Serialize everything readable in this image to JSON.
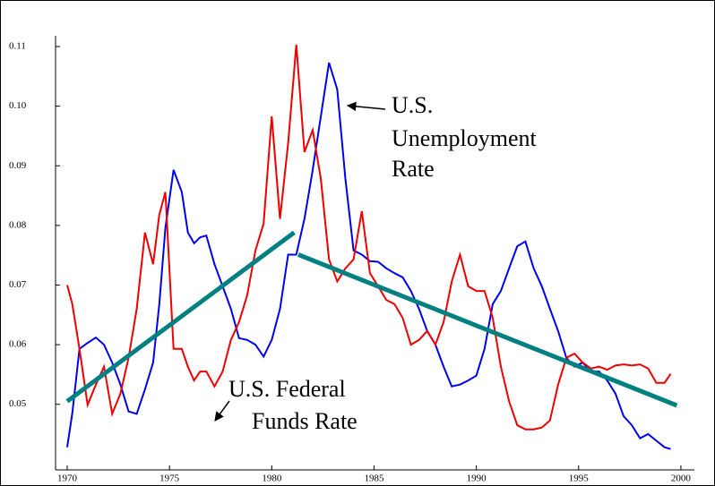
{
  "chart_data": {
    "type": "line",
    "x": [
      1970,
      1970.25,
      1970.6,
      1971.0,
      1971.4,
      1971.8,
      1972.2,
      1972.6,
      1973.0,
      1973.4,
      1973.8,
      1974.2,
      1974.5,
      1974.8,
      1975.2,
      1975.6,
      1975.9,
      1976.2,
      1976.5,
      1976.8,
      1977.2,
      1977.6,
      1978.0,
      1978.4,
      1978.8,
      1979.2,
      1979.6,
      1980.0,
      1980.4,
      1980.8,
      1981.2,
      1981.6,
      1982.0,
      1982.4,
      1982.8,
      1983.2,
      1983.6,
      1984.0,
      1984.4,
      1984.8,
      1985.2,
      1985.6,
      1986.0,
      1986.4,
      1986.8,
      1987.2,
      1987.6,
      1988.0,
      1988.4,
      1988.8,
      1989.2,
      1989.6,
      1990.0,
      1990.4,
      1990.8,
      1991.2,
      1991.6,
      1992.0,
      1992.4,
      1992.8,
      1993.2,
      1993.6,
      1994.0,
      1994.4,
      1994.8,
      1995.2,
      1995.6,
      1996.0,
      1996.4,
      1996.8,
      1997.2,
      1997.6,
      1998.0,
      1998.4,
      1998.8,
      1999.2,
      1999.5
    ],
    "series": [
      {
        "color": "#0000ee",
        "values": [
          0.0428,
          0.0485,
          0.0593,
          0.0603,
          0.0612,
          0.06,
          0.057,
          0.0533,
          0.0488,
          0.0484,
          0.0525,
          0.057,
          0.0668,
          0.0796,
          0.0893,
          0.0856,
          0.0788,
          0.077,
          0.078,
          0.0783,
          0.0735,
          0.0698,
          0.066,
          0.0611,
          0.0608,
          0.06,
          0.058,
          0.0608,
          0.066,
          0.0751,
          0.0751,
          0.0811,
          0.0893,
          0.0983,
          0.1073,
          0.1028,
          0.0878,
          0.0758,
          0.0751,
          0.074,
          0.0739,
          0.0728,
          0.072,
          0.0713,
          0.069,
          0.066,
          0.0623,
          0.06,
          0.0563,
          0.053,
          0.0533,
          0.054,
          0.0548,
          0.0593,
          0.0668,
          0.069,
          0.0728,
          0.0765,
          0.0773,
          0.0728,
          0.0698,
          0.066,
          0.0623,
          0.0578,
          0.0563,
          0.057,
          0.0555,
          0.0555,
          0.054,
          0.0518,
          0.048,
          0.0465,
          0.0443,
          0.045,
          0.0439,
          0.0428,
          0.0425
        ]
      },
      {
        "color": "#ee0000",
        "values": [
          0.07,
          0.0668,
          0.0593,
          0.0499,
          0.0533,
          0.0563,
          0.0484,
          0.0518,
          0.0578,
          0.066,
          0.0788,
          0.0735,
          0.0818,
          0.0856,
          0.0593,
          0.0593,
          0.0563,
          0.054,
          0.0555,
          0.0555,
          0.053,
          0.0555,
          0.0608,
          0.0638,
          0.0683,
          0.0758,
          0.0803,
          0.0983,
          0.0811,
          0.0938,
          0.1103,
          0.0923,
          0.096,
          0.0878,
          0.0743,
          0.0706,
          0.0728,
          0.0743,
          0.0824,
          0.072,
          0.0698,
          0.0675,
          0.0668,
          0.0645,
          0.06,
          0.0608,
          0.0623,
          0.06,
          0.0638,
          0.0706,
          0.0751,
          0.0698,
          0.069,
          0.069,
          0.0645,
          0.0563,
          0.0505,
          0.0465,
          0.0458,
          0.0458,
          0.0461,
          0.0473,
          0.0533,
          0.0578,
          0.0585,
          0.057,
          0.056,
          0.0563,
          0.0558,
          0.0565,
          0.0567,
          0.0565,
          0.0567,
          0.056,
          0.0536,
          0.0536,
          0.0551
        ]
      },
      {
        "color": "#008080",
        "x": [
          1970,
          1981.1
        ],
        "values": [
          0.0505,
          0.0788
        ]
      },
      {
        "color": "#008080",
        "x": [
          1981.3,
          1999.8
        ],
        "values": [
          0.0751,
          0.0498
        ]
      }
    ],
    "annotations": [
      {
        "lines": [
          "U.S.",
          "Unemployment",
          "Rate"
        ]
      },
      {
        "lines": [
          "U.S. Federal",
          "Funds Rate"
        ]
      }
    ],
    "xlim": [
      1969.43,
      2000.66
    ],
    "xticks": [
      1970,
      1975,
      1980,
      1985,
      1990,
      1995,
      2000
    ],
    "ylim": [
      0.039,
      0.1118
    ],
    "yticks": [
      0.05,
      0.06,
      0.07,
      0.08,
      0.09,
      {
        "value": 0.1,
        "label": "0.10"
      },
      0.11
    ]
  }
}
